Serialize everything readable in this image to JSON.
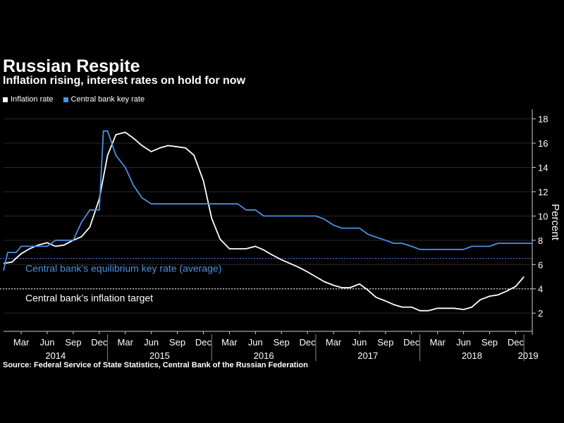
{
  "chart_data": {
    "type": "line",
    "title": "Russian Respite",
    "subtitle": "Inflation rising, interest rates on hold for now",
    "ylabel": "Percent",
    "ylim": [
      0.5,
      18.5
    ],
    "yticks": [
      2,
      4,
      6,
      8,
      10,
      12,
      14,
      16,
      18
    ],
    "x_start": 2014.0,
    "x_end": 2019.08,
    "month_ticks": [
      {
        "label": "Mar",
        "x": 2014.17
      },
      {
        "label": "Jun",
        "x": 2014.42
      },
      {
        "label": "Sep",
        "x": 2014.67
      },
      {
        "label": "Dec",
        "x": 2014.92
      },
      {
        "label": "Mar",
        "x": 2015.17
      },
      {
        "label": "Jun",
        "x": 2015.42
      },
      {
        "label": "Sep",
        "x": 2015.67
      },
      {
        "label": "Dec",
        "x": 2015.92
      },
      {
        "label": "Mar",
        "x": 2016.17
      },
      {
        "label": "Jun",
        "x": 2016.42
      },
      {
        "label": "Sep",
        "x": 2016.67
      },
      {
        "label": "Dec",
        "x": 2016.92
      },
      {
        "label": "Mar",
        "x": 2017.17
      },
      {
        "label": "Jun",
        "x": 2017.42
      },
      {
        "label": "Sep",
        "x": 2017.67
      },
      {
        "label": "Dec",
        "x": 2017.92
      },
      {
        "label": "Mar",
        "x": 2018.17
      },
      {
        "label": "Jun",
        "x": 2018.42
      },
      {
        "label": "Sep",
        "x": 2018.67
      },
      {
        "label": "Dec",
        "x": 2018.92
      }
    ],
    "year_labels": [
      {
        "label": "2014",
        "x": 2014.5
      },
      {
        "label": "2015",
        "x": 2015.5
      },
      {
        "label": "2016",
        "x": 2016.5
      },
      {
        "label": "2017",
        "x": 2017.5
      },
      {
        "label": "2018",
        "x": 2018.5
      },
      {
        "label": "2019",
        "x": 2019.04
      }
    ],
    "year_separators": [
      2015.0,
      2016.0,
      2017.0,
      2018.0,
      2019.0
    ],
    "series": [
      {
        "name": "Inflation rate",
        "color": "#ffffff",
        "x": [
          2014.0,
          2014.08,
          2014.17,
          2014.25,
          2014.33,
          2014.42,
          2014.5,
          2014.58,
          2014.67,
          2014.75,
          2014.83,
          2014.92,
          2015.0,
          2015.08,
          2015.17,
          2015.25,
          2015.33,
          2015.42,
          2015.5,
          2015.58,
          2015.67,
          2015.75,
          2015.83,
          2015.92,
          2016.0,
          2016.08,
          2016.17,
          2016.25,
          2016.33,
          2016.42,
          2016.5,
          2016.58,
          2016.67,
          2016.75,
          2016.83,
          2016.92,
          2017.0,
          2017.08,
          2017.17,
          2017.25,
          2017.33,
          2017.42,
          2017.5,
          2017.58,
          2017.67,
          2017.75,
          2017.83,
          2017.92,
          2018.0,
          2018.08,
          2018.17,
          2018.25,
          2018.33,
          2018.42,
          2018.5,
          2018.58,
          2018.67,
          2018.75,
          2018.83,
          2018.92,
          2019.0
        ],
        "values": [
          6.1,
          6.2,
          6.9,
          7.3,
          7.6,
          7.8,
          7.5,
          7.6,
          8.0,
          8.3,
          9.1,
          11.4,
          15.0,
          16.7,
          16.9,
          16.4,
          15.8,
          15.3,
          15.6,
          15.8,
          15.7,
          15.6,
          15.0,
          12.9,
          9.8,
          8.1,
          7.3,
          7.3,
          7.3,
          7.5,
          7.2,
          6.8,
          6.4,
          6.1,
          5.8,
          5.4,
          5.0,
          4.6,
          4.3,
          4.1,
          4.1,
          4.4,
          3.9,
          3.3,
          3.0,
          2.7,
          2.5,
          2.5,
          2.2,
          2.2,
          2.4,
          2.4,
          2.4,
          2.3,
          2.5,
          3.1,
          3.4,
          3.5,
          3.8,
          4.2,
          5.0
        ]
      },
      {
        "name": "Central bank key rate",
        "color": "#4a90e2",
        "x": [
          2014.0,
          2014.04,
          2014.12,
          2014.17,
          2014.25,
          2014.33,
          2014.42,
          2014.5,
          2014.58,
          2014.67,
          2014.75,
          2014.83,
          2014.92,
          2014.96,
          2015.0,
          2015.08,
          2015.17,
          2015.25,
          2015.33,
          2015.42,
          2015.5,
          2015.58,
          2015.67,
          2015.75,
          2015.83,
          2015.92,
          2016.0,
          2016.08,
          2016.17,
          2016.25,
          2016.33,
          2016.42,
          2016.5,
          2016.58,
          2016.67,
          2016.75,
          2016.83,
          2016.92,
          2017.0,
          2017.08,
          2017.17,
          2017.25,
          2017.33,
          2017.42,
          2017.5,
          2017.58,
          2017.67,
          2017.75,
          2017.83,
          2017.92,
          2018.0,
          2018.08,
          2018.17,
          2018.25,
          2018.33,
          2018.42,
          2018.5,
          2018.58,
          2018.67,
          2018.75,
          2018.83,
          2018.92,
          2019.0,
          2019.08
        ],
        "values": [
          5.5,
          7.0,
          7.0,
          7.5,
          7.5,
          7.5,
          7.5,
          8.0,
          8.0,
          8.0,
          9.5,
          10.5,
          10.5,
          17.0,
          17.0,
          15.0,
          14.0,
          12.5,
          11.5,
          11.0,
          11.0,
          11.0,
          11.0,
          11.0,
          11.0,
          11.0,
          11.0,
          11.0,
          11.0,
          11.0,
          10.5,
          10.5,
          10.0,
          10.0,
          10.0,
          10.0,
          10.0,
          10.0,
          10.0,
          9.75,
          9.25,
          9.0,
          9.0,
          9.0,
          8.5,
          8.25,
          8.0,
          7.75,
          7.75,
          7.5,
          7.25,
          7.25,
          7.25,
          7.25,
          7.25,
          7.25,
          7.5,
          7.5,
          7.5,
          7.75,
          7.75,
          7.75,
          7.75,
          7.75
        ]
      }
    ],
    "reference_lines": [
      {
        "label": "Central bank’s equilibrium key rate (average)",
        "value": 6.5,
        "color": "#4a90e2"
      },
      {
        "label": "Central bank’s inflation target",
        "value": 4.0,
        "color": "#ffffff"
      }
    ],
    "source": "Source: Federal Service of State Statistics, Central Bank of the Russian Federation"
  },
  "legend": {
    "inflation": "Inflation rate",
    "keyrate": "Central bank key rate"
  },
  "colors": {
    "background": "#000000",
    "inflation": "#ffffff",
    "keyrate": "#4a90e2",
    "grid": "#555555"
  }
}
